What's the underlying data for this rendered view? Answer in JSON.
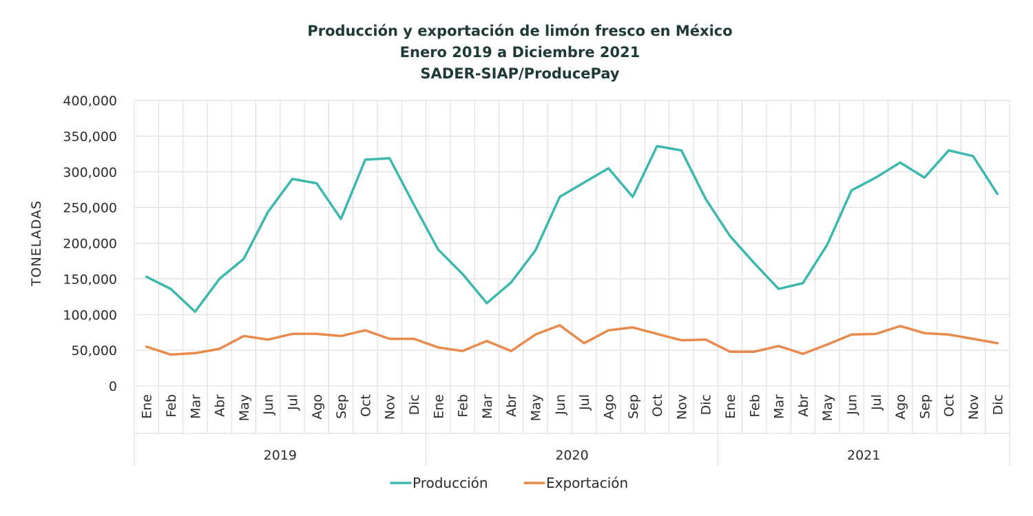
{
  "chart_data": {
    "type": "line",
    "title_lines": [
      "Producción y exportación de limón fresco en México",
      "Enero 2019 a Diciembre 2021",
      "SADER-SIAP/ProducePay"
    ],
    "ylabel": "TONELADAS",
    "xlabel": "",
    "ylim": [
      0,
      400000
    ],
    "yticks": [
      0,
      50000,
      100000,
      150000,
      200000,
      250000,
      300000,
      350000,
      400000
    ],
    "ytick_labels": [
      "0",
      "50,000",
      "100,000",
      "150,000",
      "200,000",
      "250,000",
      "300,000",
      "350,000",
      "400,000"
    ],
    "categories": [
      "Ene",
      "Feb",
      "Mar",
      "Abr",
      "May",
      "Jun",
      "Jul",
      "Ago",
      "Sep",
      "Oct",
      "Nov",
      "Dic",
      "Ene",
      "Feb",
      "Mar",
      "Abr",
      "May",
      "Jun",
      "Jul",
      "Ago",
      "Sep",
      "Oct",
      "Nov",
      "Dic",
      "Ene",
      "Feb",
      "Mar",
      "Abr",
      "May",
      "Jun",
      "Jul",
      "Ago",
      "Sep",
      "Oct",
      "Nov",
      "Dic"
    ],
    "groups": [
      {
        "label": "2019",
        "count": 12
      },
      {
        "label": "2020",
        "count": 12
      },
      {
        "label": "2021",
        "count": 12
      }
    ],
    "grid": true,
    "legend_position": "bottom",
    "series": [
      {
        "name": "Producción",
        "color": "#3bb8ad",
        "values": [
          153000,
          136000,
          104000,
          150000,
          178000,
          244000,
          290000,
          284000,
          234000,
          317000,
          319000,
          254000,
          191000,
          157000,
          116000,
          145000,
          190000,
          265000,
          285000,
          305000,
          265000,
          336000,
          330000,
          262000,
          210000,
          172000,
          136000,
          144000,
          198000,
          274000,
          292000,
          313000,
          292000,
          330000,
          322000,
          269000
        ]
      },
      {
        "name": "Exportación",
        "color": "#e88a4b",
        "values": [
          55000,
          44000,
          46000,
          52000,
          70000,
          65000,
          73000,
          73000,
          70000,
          78000,
          66000,
          66000,
          54000,
          49000,
          63000,
          49000,
          72000,
          85000,
          60000,
          78000,
          82000,
          73000,
          64000,
          65000,
          48000,
          48000,
          56000,
          45000,
          58000,
          72000,
          73000,
          84000,
          74000,
          72000,
          66000,
          60000
        ]
      }
    ]
  }
}
